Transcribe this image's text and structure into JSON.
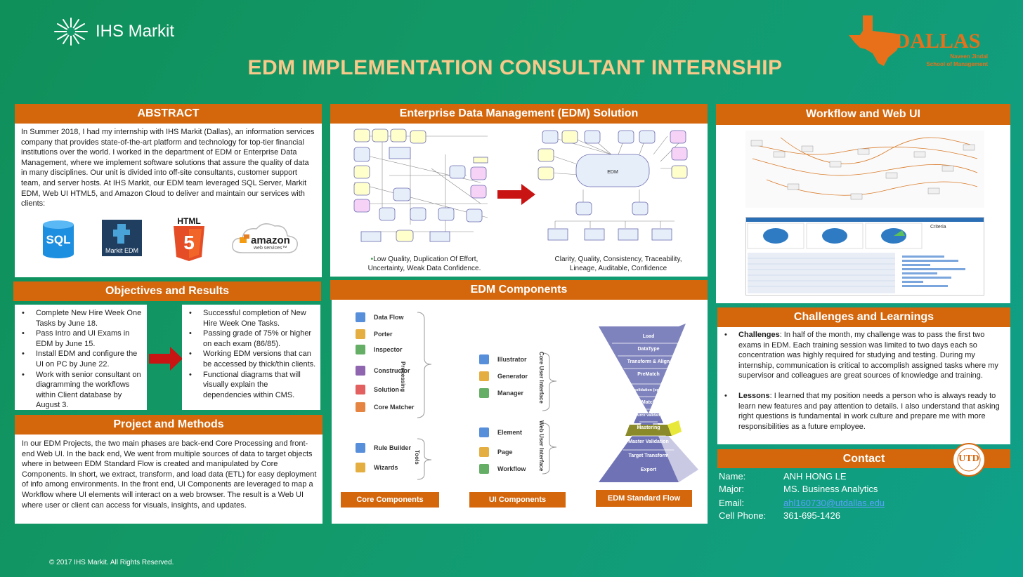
{
  "header": {
    "brand": "IHS Markit",
    "title": "EDM IMPLEMENTATION CONSULTANT INTERNSHIP",
    "school_logo": "UTDALLAS",
    "school_sub1": "Naveen Jindal",
    "school_sub2": "School of Management"
  },
  "abstract": {
    "title": "ABSTRACT",
    "body": "In Summer 2018, I had my internship with IHS Markit (Dallas), an information services company that provides state-of-the-art platform and technology for top-tier financial institutions over the world. I worked in the department of EDM or Enterprise Data Management, where we implement software solutions that assure the quality of data in many disciplines. Our unit is divided into off-site consultants, customer support team, and server hosts. At IHS Markit, our EDM team leveraged SQL Server, Markit EDM, Web UI HTML5, and Amazon Cloud to deliver and maintain our services with clients:",
    "logos": {
      "sql": "SQL",
      "markit": "Markit EDM",
      "html": "HTML",
      "html_num": "5",
      "amazon": "amazon",
      "amazon_sub": "web services™"
    }
  },
  "objectives": {
    "title": "Objectives and Results",
    "goals": [
      "Complete New Hire Week One Tasks by June 18.",
      "Pass Intro and UI Exams in EDM by June 15.",
      "Install EDM and configure the UI on PC by June 22.",
      "Work with senior consultant on diagramming the workflows within Client database by August 3."
    ],
    "results": [
      "Successful completion of  New Hire Week One Tasks.",
      "Passing grade of 75% or higher on each exam (86/85).",
      "Working EDM versions that can be accessed by thick/thin clients.",
      "Functional diagrams that will visually explain the dependencies within CMS."
    ]
  },
  "project": {
    "title": "Project and Methods",
    "body": "In our EDM Projects, the two main phases are back-end Core Processing and front-end Web UI. In the back end, We went from multiple sources of data to target objects where in between EDM Standard Flow is created and manipulated by Core Components. In short, we extract, transform, and load data (ETL) for easy deployment of info among environments. In the front end, UI Components are leveraged to map a Workflow where UI elements will interact on a web browser. The result is a Web UI where user or client can access for visuals, insights, and updates."
  },
  "edm_solution": {
    "title": "Enterprise Data Management (EDM) Solution",
    "before_caption": "Low Quality, Duplication Of Effort, Uncertainty, Weak Data Confidence.",
    "after_caption": "Clarity, Quality, Consistency, Traceability, Lineage, Auditable, Confidence",
    "hub_label": "EDM"
  },
  "edm_components": {
    "title": "EDM Components",
    "processing_label": "Processing",
    "tools_label": "Tools",
    "core_ui_label": "Core User Interface",
    "web_ui_label": "Web User Interface",
    "core_items": [
      "Data Flow",
      "Porter",
      "Inspector",
      "Constructor",
      "Solution",
      "Core Matcher"
    ],
    "tool_items": [
      "Rule Builder",
      "Wizards"
    ],
    "core_ui_items": [
      "Illustrator",
      "Generator",
      "Manager"
    ],
    "web_ui_items": [
      "Element",
      "Page",
      "Workflow"
    ],
    "flow_steps": [
      "Load",
      "DataType",
      "Transform & Align",
      "PreMatch",
      "Consolidation (optional)",
      "Match",
      "Source validation",
      "Mastering",
      "Master Validation",
      "Target Transform",
      "Export"
    ],
    "buttons": {
      "core": "Core Components",
      "ui": "UI Components",
      "flow": "EDM Standard Flow"
    }
  },
  "workflow": {
    "title": "Workflow and Web UI",
    "criteria_label": "Criteria"
  },
  "challenges": {
    "title": "Challenges and Learnings",
    "items": [
      {
        "label": "Challenges",
        "text": ": In half of the month, my challenge was to pass the first two exams in EDM. Each training session was limited to two days each so concentration was highly required for studying and testing. During my internship, communication is critical to accomplish assigned tasks where my supervisor and colleagues are great sources of knowledge and training."
      },
      {
        "label": "Lessons",
        "text": ": I learned that my position needs a person who is always ready to learn new features and pay attention to details. I also understand that asking right questions is fundamental in work culture and prepare me with more responsibilities as a future employee."
      }
    ]
  },
  "contact": {
    "title": "Contact",
    "rows": [
      {
        "key": "Name:",
        "value": "ANH HONG LE"
      },
      {
        "key": "Major:",
        "value": "MS. Business Analytics"
      },
      {
        "key": "Email:",
        "value": "ahl160730@utdallas.edu"
      },
      {
        "key": "Cell Phone:",
        "value": "361-695-1426"
      }
    ],
    "seal": "UTD"
  },
  "footer": {
    "copyright": "© 2017 IHS Markit. All Rights Reserved."
  },
  "colors": {
    "accent": "#d4660c",
    "background": "#139a6a",
    "title": "#f7c98a"
  }
}
